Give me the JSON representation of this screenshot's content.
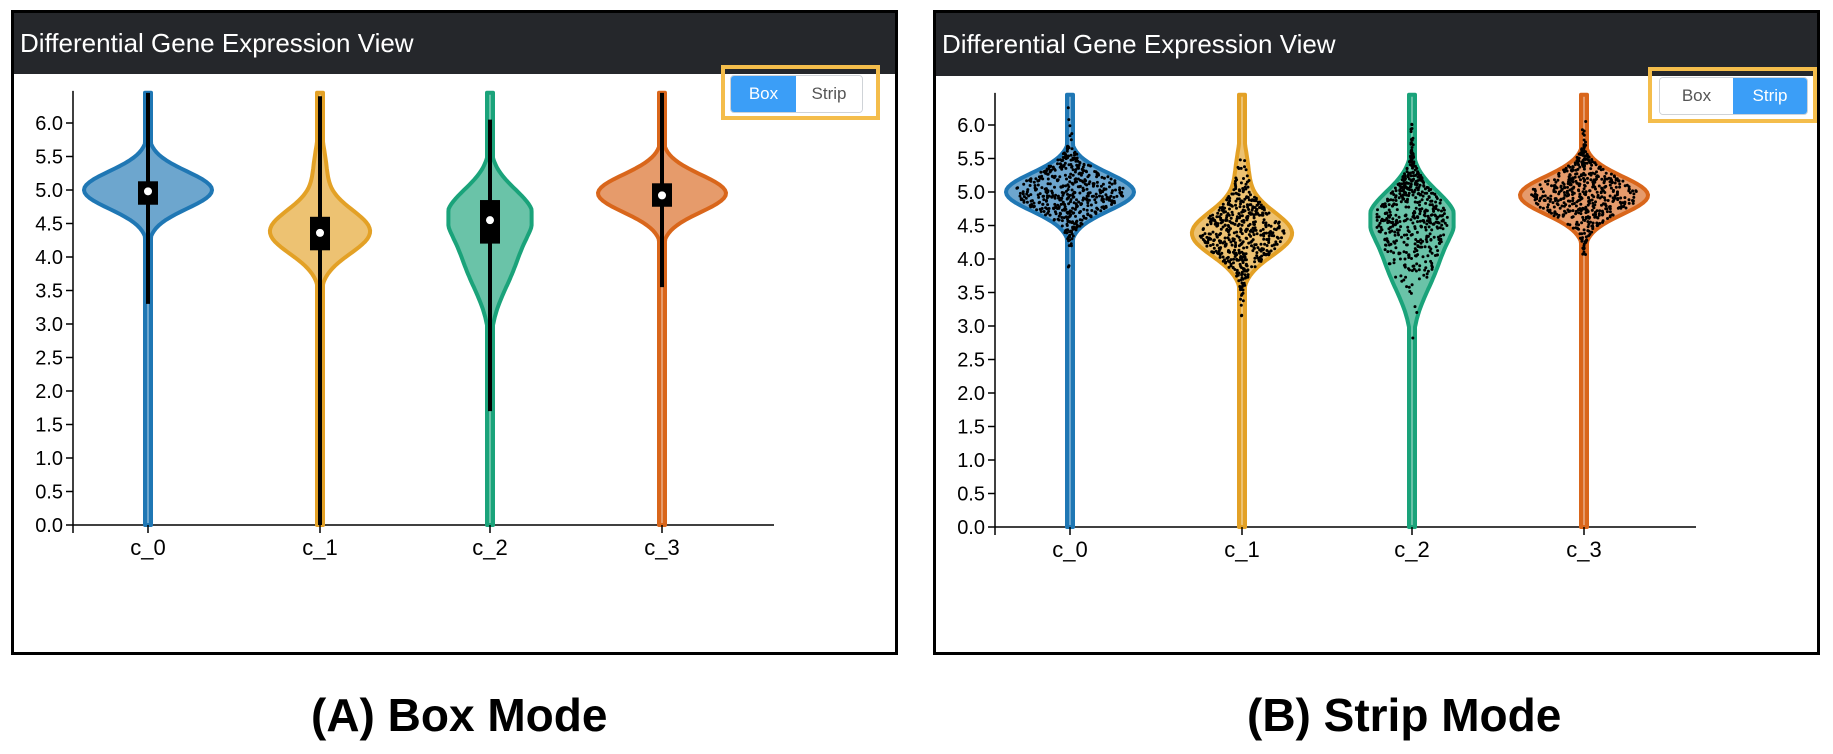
{
  "colors": {
    "header_bg": "#25272b",
    "highlight": "#f4bd4b",
    "toggle_active": "#3b9ef7",
    "c_0": "#1f77b4",
    "c_1": "#e3a126",
    "c_2": "#1aa37a",
    "c_3": "#d9661b"
  },
  "panels": [
    {
      "title": "Differential Gene Expression View",
      "caption": "(A) Box Mode",
      "mode": "box",
      "toggle": {
        "box_label": "Box",
        "strip_label": "Strip",
        "active": "Box"
      }
    },
    {
      "title": "Differential Gene Expression View",
      "caption": "(B) Strip Mode",
      "mode": "strip",
      "toggle": {
        "box_label": "Box",
        "strip_label": "Strip",
        "active": "Strip"
      }
    }
  ],
  "chart_data": {
    "type": "violin",
    "categories": [
      "c_0",
      "c_1",
      "c_2",
      "c_3"
    ],
    "yticks": [
      "0.0",
      "0.5",
      "1.0",
      "1.5",
      "2.0",
      "2.5",
      "3.0",
      "3.5",
      "4.0",
      "4.5",
      "5.0",
      "5.5",
      "6.0"
    ],
    "ylim": [
      0,
      6.4
    ],
    "series": [
      {
        "category": "c_0",
        "min": 0.0,
        "max": 6.45,
        "mode": 5.0,
        "median": 4.98,
        "q1": 4.78,
        "q3": 5.13,
        "whisker_low": 3.3,
        "whisker_high": 6.45,
        "max_width": 1.0
      },
      {
        "category": "c_1",
        "min": 0.0,
        "max": 6.45,
        "mode": 4.35,
        "median": 4.36,
        "q1": 4.1,
        "q3": 4.6,
        "whisker_low": 0.0,
        "whisker_high": 6.4,
        "max_width": 0.78
      },
      {
        "category": "c_2",
        "min": 0.0,
        "max": 6.45,
        "mode": 4.5,
        "median": 4.55,
        "q1": 4.2,
        "q3": 4.85,
        "whisker_low": 1.7,
        "whisker_high": 6.05,
        "max_width": 0.65
      },
      {
        "category": "c_3",
        "min": 0.0,
        "max": 6.45,
        "mode": 4.95,
        "median": 4.92,
        "q1": 4.75,
        "q3": 5.1,
        "whisker_low": 3.55,
        "whisker_high": 6.45,
        "max_width": 1.0
      }
    ]
  }
}
